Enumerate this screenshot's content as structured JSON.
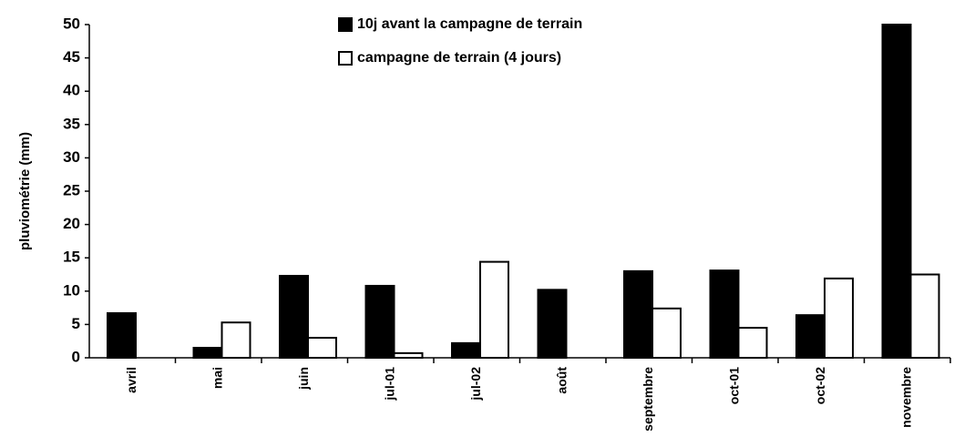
{
  "chart_data": {
    "type": "bar",
    "y_label": "pluviométrie (mm)",
    "categories": [
      "avril",
      "mai",
      "juin",
      "jul-01",
      "jul-02",
      "août",
      "septembre",
      "oct-01",
      "oct-02",
      "novembre"
    ],
    "series": [
      {
        "name": "10j avant la campagne de terrain",
        "color": "#000000",
        "values": [
          6.7,
          1.5,
          12.3,
          10.8,
          2.2,
          10.2,
          13.0,
          13.1,
          6.4,
          50
        ]
      },
      {
        "name": "campagne de terrain (4 jours)",
        "color": "#ffffff",
        "values": [
          0,
          5.3,
          3.0,
          0.7,
          14.4,
          0,
          7.4,
          4.5,
          11.9,
          12.5
        ]
      }
    ],
    "ylim": [
      0,
      50
    ],
    "yticks": [
      0,
      5,
      10,
      15,
      20,
      25,
      30,
      35,
      40,
      45,
      50
    ]
  }
}
